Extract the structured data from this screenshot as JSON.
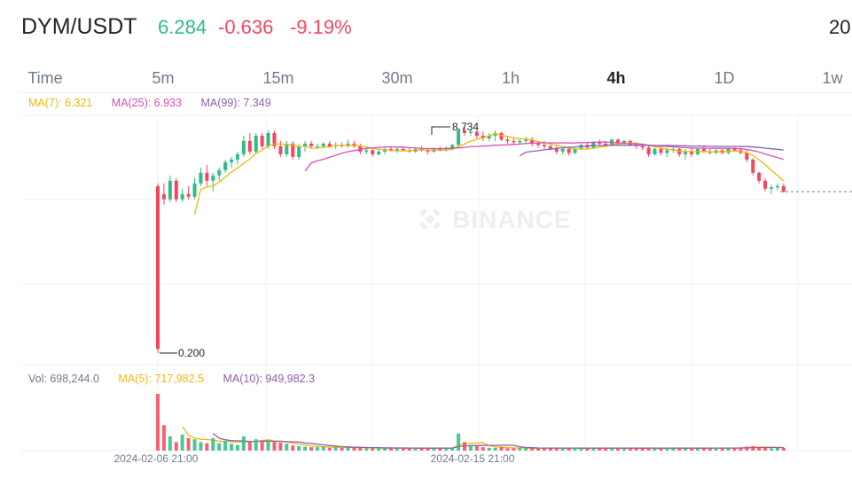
{
  "header": {
    "pair": "DYM/USDT",
    "last_price": "6.284",
    "change": "-0.636",
    "change_pct": "-9.19%",
    "year_partial": "20"
  },
  "tabs": [
    {
      "label": "Time",
      "active": false
    },
    {
      "label": "5m",
      "active": false
    },
    {
      "label": "15m",
      "active": false
    },
    {
      "label": "30m",
      "active": false
    },
    {
      "label": "1h",
      "active": false
    },
    {
      "label": "4h",
      "active": true
    },
    {
      "label": "1D",
      "active": false
    },
    {
      "label": "1w",
      "active": false
    }
  ],
  "ma_legend": {
    "ma7": "MA(7): 6.321",
    "ma25": "MA(25): 6.933",
    "ma99": "MA(99): 7.349"
  },
  "vol_legend": {
    "vol": "Vol: 698,244.0",
    "ma5": "MA(5): 717,982.5",
    "ma10": "MA(10): 949,982.3"
  },
  "watermark": "BINANCE",
  "colors": {
    "up": "#2ebd85",
    "down": "#f6465d",
    "ma7": "#f0b90b",
    "ma25": "#d84fb6",
    "ma99": "#8e5fb0"
  },
  "chart_data": {
    "type": "candlestick",
    "interval": "4h",
    "high_label": "8.734",
    "low_label": "0.200",
    "x_tick_labels": [
      "2024-02-06 21:00",
      "2024-02-15 21:00"
    ],
    "ohlc": [
      [
        6.5,
        6.6,
        0.2,
        0.35
      ],
      [
        6.2,
        6.6,
        5.8,
        6.0
      ],
      [
        6.0,
        6.9,
        5.9,
        6.7
      ],
      [
        6.7,
        6.8,
        5.9,
        6.0
      ],
      [
        6.0,
        6.4,
        5.9,
        6.2
      ],
      [
        6.2,
        6.5,
        6.0,
        6.1
      ],
      [
        6.1,
        6.8,
        6.0,
        6.6
      ],
      [
        6.6,
        7.2,
        6.5,
        7.0
      ],
      [
        7.0,
        7.3,
        6.5,
        6.7
      ],
      [
        6.7,
        7.0,
        6.3,
        6.9
      ],
      [
        6.9,
        7.2,
        6.7,
        7.1
      ],
      [
        7.1,
        7.5,
        7.0,
        7.4
      ],
      [
        7.4,
        7.6,
        7.2,
        7.5
      ],
      [
        7.5,
        7.8,
        7.3,
        7.7
      ],
      [
        7.7,
        8.4,
        7.6,
        8.2
      ],
      [
        8.2,
        8.5,
        7.7,
        7.8
      ],
      [
        7.8,
        8.5,
        7.7,
        8.4
      ],
      [
        8.4,
        8.5,
        7.9,
        8.0
      ],
      [
        8.0,
        8.6,
        7.9,
        8.5
      ],
      [
        8.5,
        8.6,
        7.9,
        8.0
      ],
      [
        8.0,
        8.2,
        7.6,
        7.7
      ],
      [
        7.7,
        8.2,
        7.6,
        8.1
      ],
      [
        8.1,
        8.2,
        7.5,
        7.6
      ],
      [
        7.6,
        8.1,
        7.5,
        8.0
      ],
      [
        8.0,
        8.2,
        7.8,
        8.1
      ],
      [
        8.1,
        8.2,
        7.9,
        8.0
      ],
      [
        8.0,
        8.1,
        7.9,
        8.0
      ],
      [
        8.0,
        8.15,
        7.9,
        8.1
      ],
      [
        8.1,
        8.2,
        7.95,
        8.0
      ],
      [
        8.0,
        8.15,
        7.9,
        8.05
      ],
      [
        8.05,
        8.15,
        7.95,
        8.0
      ],
      [
        8.0,
        8.25,
        7.95,
        8.1
      ],
      [
        8.1,
        8.2,
        7.95,
        8.0
      ],
      [
        8.0,
        8.1,
        7.7,
        7.8
      ],
      [
        7.8,
        8.0,
        7.7,
        7.85
      ],
      [
        7.85,
        7.95,
        7.6,
        7.7
      ],
      [
        7.7,
        7.9,
        7.65,
        7.8
      ],
      [
        7.8,
        7.95,
        7.7,
        7.9
      ],
      [
        7.9,
        8.0,
        7.8,
        7.85
      ],
      [
        7.85,
        7.95,
        7.75,
        7.9
      ],
      [
        7.9,
        8.0,
        7.8,
        7.85
      ],
      [
        7.85,
        7.95,
        7.75,
        7.8
      ],
      [
        7.8,
        7.95,
        7.75,
        7.9
      ],
      [
        7.9,
        8.0,
        7.8,
        7.85
      ],
      [
        7.85,
        7.9,
        7.7,
        7.8
      ],
      [
        7.8,
        7.95,
        7.75,
        7.9
      ],
      [
        7.9,
        8.0,
        7.8,
        7.85
      ],
      [
        7.85,
        8.0,
        7.8,
        7.9
      ],
      [
        7.9,
        8.1,
        7.85,
        8.05
      ],
      [
        8.05,
        8.7,
        8.0,
        8.6
      ],
      [
        8.6,
        8.734,
        8.4,
        8.5
      ],
      [
        8.5,
        8.65,
        8.4,
        8.55
      ],
      [
        8.55,
        8.6,
        8.3,
        8.4
      ],
      [
        8.4,
        8.55,
        8.2,
        8.3
      ],
      [
        8.3,
        8.5,
        8.2,
        8.4
      ],
      [
        8.4,
        8.6,
        8.2,
        8.5
      ],
      [
        8.5,
        8.55,
        8.2,
        8.25
      ],
      [
        8.25,
        8.4,
        8.1,
        8.2
      ],
      [
        8.2,
        8.35,
        8.05,
        8.15
      ],
      [
        8.15,
        8.3,
        8.05,
        8.2
      ],
      [
        8.2,
        8.35,
        8.1,
        8.25
      ],
      [
        8.25,
        8.35,
        8.0,
        8.1
      ],
      [
        8.1,
        8.2,
        7.95,
        8.05
      ],
      [
        8.05,
        8.2,
        7.9,
        8.0
      ],
      [
        8.0,
        8.15,
        7.85,
        7.9
      ],
      [
        7.9,
        8.05,
        7.7,
        7.8
      ],
      [
        7.8,
        7.95,
        7.7,
        7.9
      ],
      [
        7.9,
        8.0,
        7.65,
        7.75
      ],
      [
        7.75,
        7.95,
        7.7,
        7.9
      ],
      [
        7.9,
        8.1,
        7.85,
        8.05
      ],
      [
        8.05,
        8.15,
        7.9,
        7.95
      ],
      [
        7.95,
        8.2,
        7.9,
        8.15
      ],
      [
        8.15,
        8.25,
        8.0,
        8.1
      ],
      [
        8.1,
        8.2,
        8.0,
        8.05
      ],
      [
        8.05,
        8.3,
        8.0,
        8.25
      ],
      [
        8.25,
        8.3,
        8.05,
        8.1
      ],
      [
        8.1,
        8.25,
        8.05,
        8.2
      ],
      [
        8.2,
        8.25,
        8.0,
        8.05
      ],
      [
        8.05,
        8.15,
        7.9,
        8.0
      ],
      [
        8.0,
        8.1,
        7.85,
        7.95
      ],
      [
        7.95,
        8.05,
        7.6,
        7.7
      ],
      [
        7.7,
        7.95,
        7.65,
        7.9
      ],
      [
        7.9,
        8.0,
        7.65,
        7.75
      ],
      [
        7.75,
        7.95,
        7.6,
        7.85
      ],
      [
        7.85,
        8.0,
        7.75,
        7.9
      ],
      [
        7.9,
        7.95,
        7.6,
        7.7
      ],
      [
        7.7,
        7.9,
        7.5,
        7.8
      ],
      [
        7.8,
        7.95,
        7.6,
        7.7
      ],
      [
        7.7,
        7.95,
        7.65,
        7.9
      ],
      [
        7.9,
        8.0,
        7.75,
        7.8
      ],
      [
        7.8,
        7.9,
        7.7,
        7.75
      ],
      [
        7.75,
        7.9,
        7.7,
        7.85
      ],
      [
        7.85,
        7.9,
        7.7,
        7.75
      ],
      [
        7.75,
        7.95,
        7.7,
        7.9
      ],
      [
        7.9,
        8.0,
        7.8,
        7.85
      ],
      [
        7.85,
        7.95,
        7.7,
        7.75
      ],
      [
        7.75,
        7.85,
        7.4,
        7.5
      ],
      [
        7.5,
        7.55,
        6.9,
        7.0
      ],
      [
        7.0,
        7.05,
        6.6,
        6.7
      ],
      [
        6.7,
        6.8,
        6.3,
        6.4
      ],
      [
        6.4,
        6.55,
        6.2,
        6.45
      ],
      [
        6.45,
        6.6,
        6.35,
        6.5
      ],
      [
        6.5,
        6.6,
        6.25,
        6.284
      ]
    ],
    "volume": [
      100,
      45,
      25,
      15,
      28,
      22,
      20,
      15,
      13,
      22,
      13,
      17,
      12,
      10,
      25,
      15,
      20,
      18,
      17,
      15,
      14,
      12,
      9,
      8,
      7,
      6,
      6,
      7,
      5,
      6,
      5,
      6,
      5,
      5,
      4,
      4,
      5,
      4,
      5,
      4,
      5,
      4,
      4,
      5,
      4,
      4,
      5,
      4,
      5,
      30,
      15,
      10,
      8,
      6,
      5,
      5,
      6,
      4,
      4,
      4,
      5,
      4,
      4,
      5,
      4,
      5,
      4,
      4,
      5,
      4,
      5,
      4,
      4,
      5,
      4,
      5,
      4,
      4,
      5,
      4,
      5,
      4,
      4,
      5,
      4,
      5,
      4,
      5,
      4,
      5,
      4,
      5,
      5,
      4,
      5,
      5,
      7,
      8,
      6,
      5,
      4,
      5,
      5
    ]
  }
}
